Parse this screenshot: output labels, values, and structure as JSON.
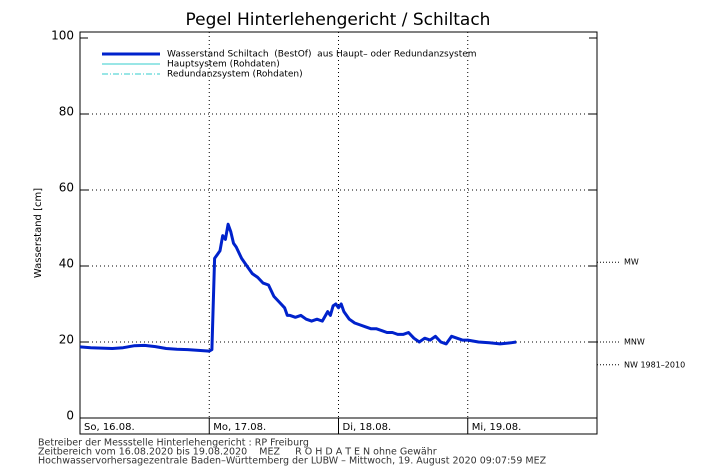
{
  "chart_data": {
    "type": "line",
    "title": "Pegel Hinterlehengericht / Schiltach",
    "y_label": "Wasserstand [cm]",
    "x": [
      0,
      2,
      4,
      6,
      8,
      10,
      12,
      14,
      16,
      18,
      20,
      22,
      24,
      24.5,
      25,
      25.5,
      26,
      26.5,
      27,
      27.5,
      28,
      28.5,
      29,
      30,
      31,
      32,
      33,
      34,
      35,
      36,
      37,
      38,
      38.5,
      39,
      40,
      41,
      42,
      43,
      44,
      45,
      46,
      46.5,
      47,
      47.5,
      48,
      48.5,
      49,
      50,
      51,
      52,
      53,
      54,
      55,
      56,
      57,
      58,
      59,
      60,
      61,
      62,
      63,
      64,
      65,
      66,
      67,
      68,
      69,
      70,
      71,
      72,
      74,
      76,
      78,
      80,
      81
    ],
    "series": [
      {
        "name": "Redundanzsystem (Rohdaten)",
        "color": "#33cccc",
        "dash": "dashdot",
        "width": 1,
        "values": [
          18.7,
          18.5,
          18.4,
          18.3,
          18.5,
          19,
          19.1,
          18.8,
          18.3,
          18.1,
          18,
          17.8,
          17.6,
          18,
          42,
          43,
          44,
          48,
          47,
          51,
          49,
          46,
          45,
          42,
          40,
          38,
          37,
          35.5,
          35,
          32,
          30.5,
          29,
          27,
          27,
          26.5,
          27,
          26,
          25.5,
          26,
          25.5,
          28,
          27,
          29.5,
          30,
          29,
          30,
          28,
          26,
          25,
          24.5,
          24,
          23.5,
          23.5,
          23,
          22.5,
          22.5,
          22,
          22,
          22.5,
          21,
          20,
          21,
          20.5,
          21.5,
          20,
          19.5,
          21.5,
          21,
          20.5,
          20.5,
          20,
          19.8,
          19.5,
          19.8,
          20
        ]
      },
      {
        "name": "Hauptsystem (Rohdaten)",
        "color": "#33cccc",
        "dash": "solid",
        "width": 1,
        "values": [
          18.7,
          18.5,
          18.4,
          18.3,
          18.5,
          19,
          19.1,
          18.8,
          18.3,
          18.1,
          18,
          17.8,
          17.6,
          18,
          42,
          43,
          44,
          48,
          47,
          51,
          49,
          46,
          45,
          42,
          40,
          38,
          37,
          35.5,
          35,
          32,
          30.5,
          29,
          27,
          27,
          26.5,
          27,
          26,
          25.5,
          26,
          25.5,
          28,
          27,
          29.5,
          30,
          29,
          30,
          28,
          26,
          25,
          24.5,
          24,
          23.5,
          23.5,
          23,
          22.5,
          22.5,
          22,
          22,
          22.5,
          21,
          20,
          21,
          20.5,
          21.5,
          20,
          19.5,
          21.5,
          21,
          20.5,
          20.5,
          20,
          19.8,
          19.5,
          19.8,
          20
        ]
      },
      {
        "name": "Wasserstand Schiltach  (BestOf)  aus Haupt– oder Redundanzsystem",
        "color": "#0022cc",
        "dash": "solid",
        "width": 3,
        "values": [
          18.7,
          18.5,
          18.4,
          18.3,
          18.5,
          19,
          19.1,
          18.8,
          18.3,
          18.1,
          18,
          17.8,
          17.6,
          18,
          42,
          43,
          44,
          48,
          47,
          51,
          49,
          46,
          45,
          42,
          40,
          38,
          37,
          35.5,
          35,
          32,
          30.5,
          29,
          27,
          27,
          26.5,
          27,
          26,
          25.5,
          26,
          25.5,
          28,
          27,
          29.5,
          30,
          29,
          30,
          28,
          26,
          25,
          24.5,
          24,
          23.5,
          23.5,
          23,
          22.5,
          22.5,
          22,
          22,
          22.5,
          21,
          20,
          21,
          20.5,
          21.5,
          20,
          19.5,
          21.5,
          21,
          20.5,
          20.5,
          20,
          19.8,
          19.5,
          19.8,
          20
        ]
      }
    ],
    "legend_order": [
      2,
      1,
      0
    ],
    "xlim": [
      0,
      96
    ],
    "xticks": [
      {
        "value": 0,
        "label": "So, 16.08."
      },
      {
        "value": 24,
        "label": "Mo, 17.08."
      },
      {
        "value": 48,
        "label": "Di, 18.08."
      },
      {
        "value": 72,
        "label": "Mi, 19.08."
      }
    ],
    "ylim": [
      0,
      100
    ],
    "yticks": [
      0,
      20,
      40,
      60,
      80,
      100
    ],
    "grid": true,
    "reference_lines": [
      {
        "label": "MW",
        "value": 41
      },
      {
        "label": "MNW",
        "value": 20
      },
      {
        "label": "NW 1981–2010",
        "value": 14
      }
    ],
    "footer": [
      "Betreiber der Messstelle Hinterlehengericht : RP Freiburg",
      "Zeitbereich vom 16.08.2020 bis 19.08.2020    MEZ     R O H D A T E N ohne Gewähr",
      "Hochwasservorhersagezentrale Baden–Württemberg der LUBW – Mittwoch, 19. August 2020 09:07:59 MEZ"
    ]
  }
}
